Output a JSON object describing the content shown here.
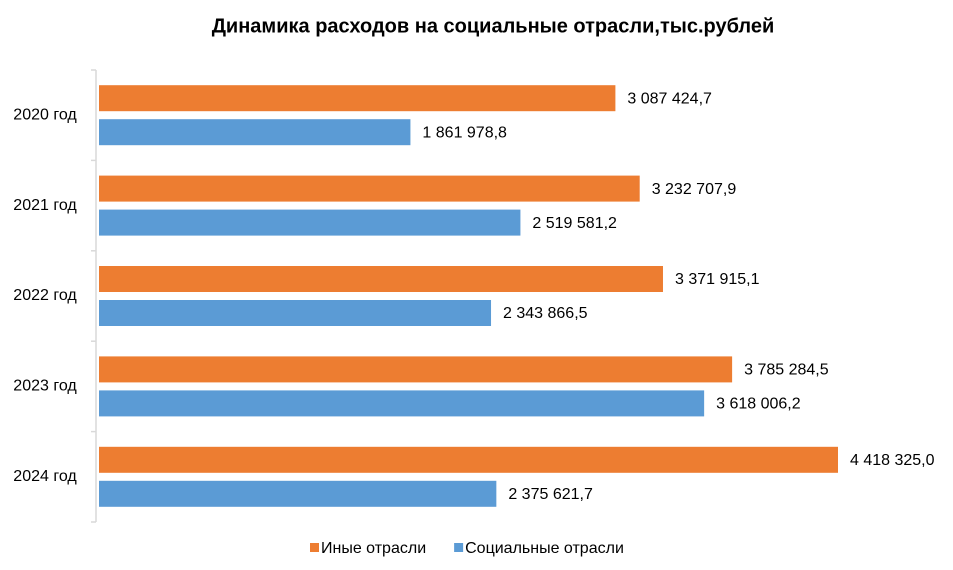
{
  "chart_data": {
    "type": "bar",
    "orientation": "horizontal",
    "title": "Динамика расходов на социальные отрасли,тыс.рублей",
    "categories": [
      "2020 год",
      "2021 год",
      "2022 год",
      "2023 год",
      "2024 год"
    ],
    "series": [
      {
        "name": "Иные отрасли",
        "color": "#ed7d31",
        "values": [
          3087424.7,
          3232707.9,
          3371915.1,
          3785284.5,
          4418325.0
        ],
        "value_labels": [
          "3 087 424,7",
          "3 232 707,9",
          "3 371 915,1",
          "3 785 284,5",
          "4 418 325,0"
        ]
      },
      {
        "name": "Социальные отрасли",
        "color": "#5b9bd5",
        "values": [
          1861978.8,
          2519581.2,
          2343866.5,
          3618006.2,
          2375621.7
        ],
        "value_labels": [
          "1 861 978,8",
          "2 519 581,2",
          "2 343 866,5",
          "3 618 006,2",
          "2 375 621,7"
        ]
      }
    ]
  }
}
